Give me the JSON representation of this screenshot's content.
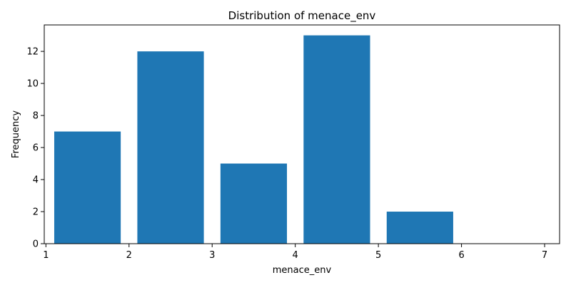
{
  "chart_data": {
    "type": "bar",
    "title": "Distribution of menace_env",
    "xlabel": "menace_env",
    "ylabel": "Frequency",
    "bins": [
      {
        "start": 1,
        "end": 2,
        "value": 7
      },
      {
        "start": 2,
        "end": 3,
        "value": 12
      },
      {
        "start": 3,
        "end": 4,
        "value": 5
      },
      {
        "start": 4,
        "end": 5,
        "value": 13
      },
      {
        "start": 5,
        "end": 6,
        "value": 2
      },
      {
        "start": 6,
        "end": 7,
        "value": 0
      }
    ],
    "xlim": [
      0.98,
      7.18
    ],
    "ylim": [
      0,
      13.65
    ],
    "xticks": [
      1,
      2,
      3,
      4,
      5,
      6,
      7
    ],
    "yticks": [
      0,
      2,
      4,
      6,
      8,
      10,
      12
    ],
    "bar_color": "#1f77b4",
    "grid": false,
    "legend": "none"
  }
}
